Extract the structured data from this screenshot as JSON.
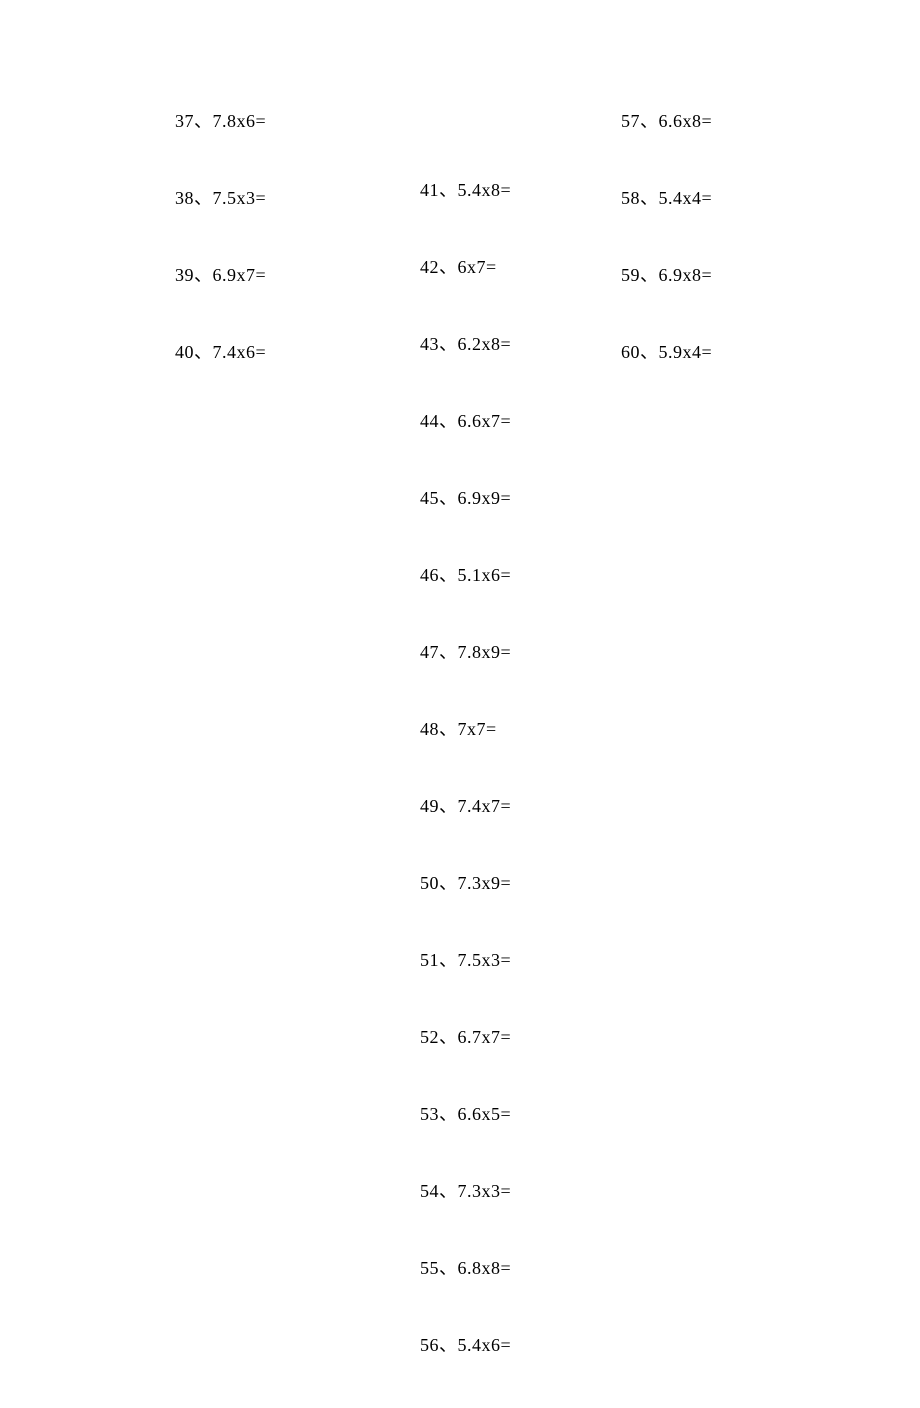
{
  "columns": {
    "col1": [
      {
        "num": "37",
        "expr": "7.8x6="
      },
      {
        "num": "38",
        "expr": "7.5x3="
      },
      {
        "num": "39",
        "expr": "6.9x7="
      },
      {
        "num": "40",
        "expr": "7.4x6="
      }
    ],
    "col2": [
      {
        "num": "41",
        "expr": "5.4x8="
      },
      {
        "num": "42",
        "expr": "6x7="
      },
      {
        "num": "43",
        "expr": "6.2x8="
      },
      {
        "num": "44",
        "expr": "6.6x7="
      },
      {
        "num": "45",
        "expr": "6.9x9="
      },
      {
        "num": "46",
        "expr": "5.1x6="
      },
      {
        "num": "47",
        "expr": "7.8x9="
      },
      {
        "num": "48",
        "expr": "7x7="
      },
      {
        "num": "49",
        "expr": "7.4x7="
      },
      {
        "num": "50",
        "expr": "7.3x9="
      },
      {
        "num": "51",
        "expr": "7.5x3="
      },
      {
        "num": "52",
        "expr": "6.7x7="
      },
      {
        "num": "53",
        "expr": "6.6x5="
      },
      {
        "num": "54",
        "expr": "7.3x3="
      },
      {
        "num": "55",
        "expr": "6.8x8="
      },
      {
        "num": "56",
        "expr": "5.4x6="
      }
    ],
    "col3": [
      {
        "num": "57",
        "expr": "6.6x8="
      },
      {
        "num": "58",
        "expr": "5.4x4="
      },
      {
        "num": "59",
        "expr": "6.9x8="
      },
      {
        "num": "60",
        "expr": "5.9x4="
      }
    ]
  },
  "separator": "、",
  "text_color": "#000000",
  "background_color": "#ffffff",
  "font_size": 18
}
